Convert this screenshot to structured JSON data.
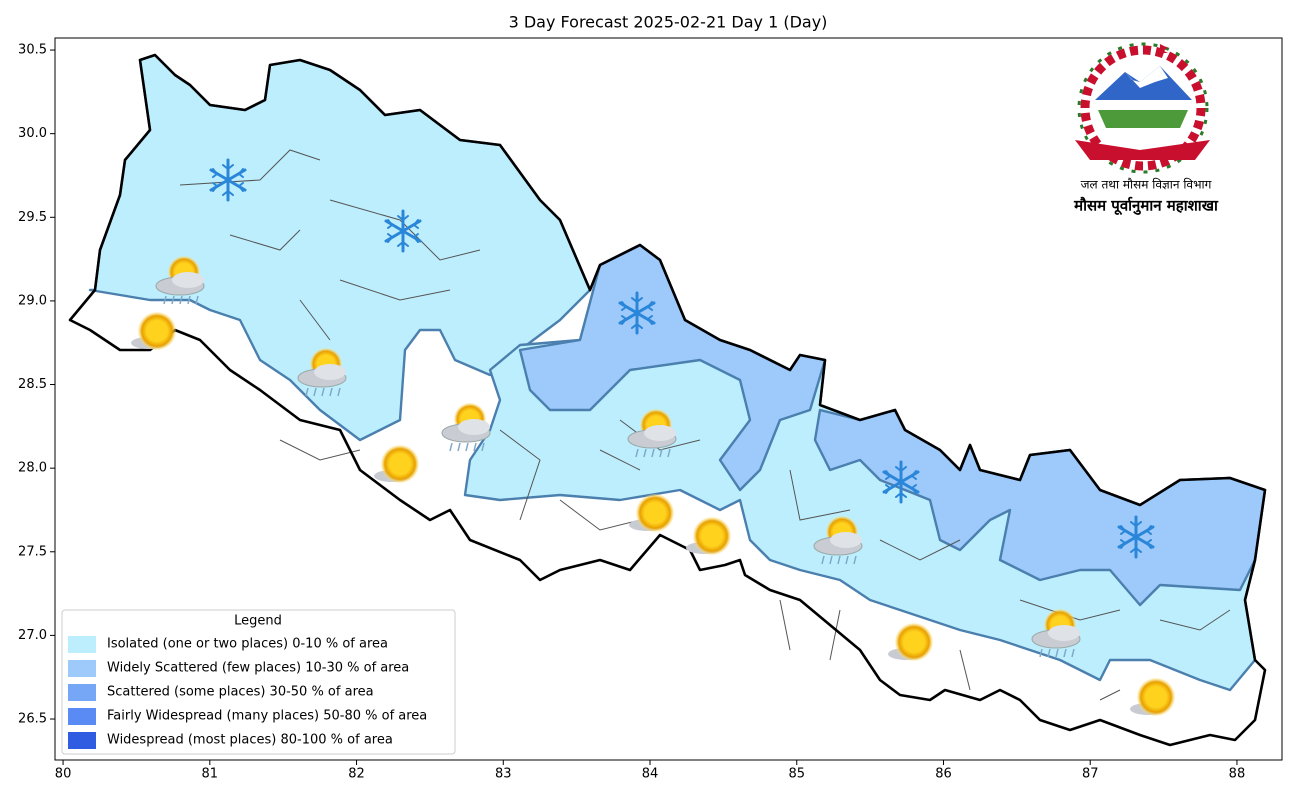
{
  "chart_data": {
    "type": "map",
    "title": "3 Day Forecast 2025-02-21 Day 1 (Day)",
    "xlim": [
      79.945,
      88.307
    ],
    "ylim": [
      26.255,
      30.572
    ],
    "xticks": [
      80,
      81,
      82,
      83,
      84,
      85,
      86,
      87,
      88
    ],
    "yticks": [
      {
        "value": 26.5,
        "label": "26.5"
      },
      {
        "value": 27,
        "label": "27.0"
      },
      {
        "value": 27.5,
        "label": "27.5"
      },
      {
        "value": 28,
        "label": "28.0"
      },
      {
        "value": 28.5,
        "label": "28.5"
      },
      {
        "value": 29,
        "label": "29.0"
      },
      {
        "value": 29.5,
        "label": "29.5"
      },
      {
        "value": 30,
        "label": "30.0"
      },
      {
        "value": 30.5,
        "label": "30.5"
      }
    ],
    "legend": {
      "title": "Legend",
      "position": "lower left",
      "items": [
        {
          "label": "Isolated (one or two places)  0-10 % of area",
          "color": "#bdeefd"
        },
        {
          "label": "Widely Scattered (few places) 10-30 % of area",
          "color": "#9dc9fb"
        },
        {
          "label": "Scattered (some places) 30-50  % of area",
          "color": "#76a7f6"
        },
        {
          "label": "Fairly Widespread (many places) 50-80 % of area",
          "color": "#5a8bf4"
        },
        {
          "label": "Widespread (most places) 80-100 % of area",
          "color": "#2f5ce0"
        }
      ]
    },
    "logo": {
      "department": "जल तथा मौसम विज्ञान विभाग",
      "division": "मौसम पूर्वानुमान महाशाखा"
    }
  }
}
